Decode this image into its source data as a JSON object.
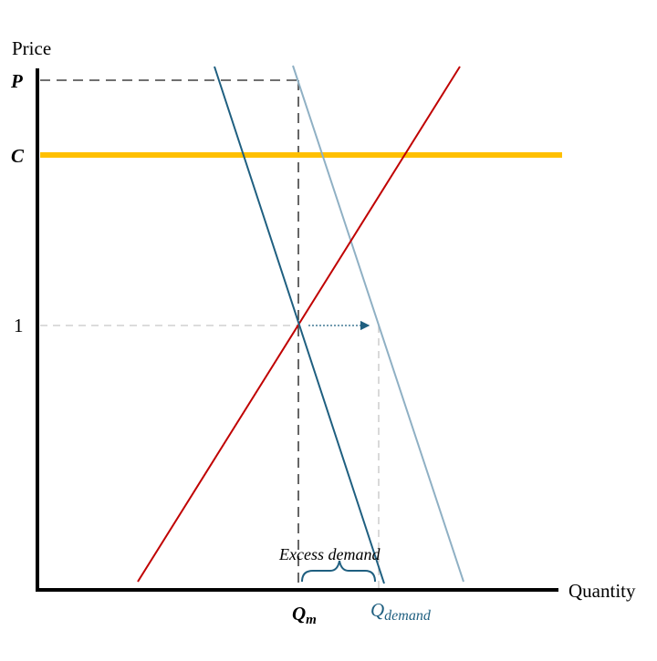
{
  "axes": {
    "y_title": "Price",
    "x_title": "Quantity"
  },
  "y_ticks": {
    "p": "P",
    "c": "C",
    "one": "1"
  },
  "x_ticks": {
    "qm_main": "Q",
    "qm_sub": "m",
    "qd_main": "Q",
    "qd_sub": "demand"
  },
  "annotation": {
    "excess": "Excess demand"
  },
  "colors": {
    "axis": "#000000",
    "supply": "#c00000",
    "demand": "#1f5f80",
    "demand_shifted": "#8fb0c4",
    "cap_line": "#ffc000",
    "guide_dark": "#404040",
    "guide_light": "#d0d0d0",
    "arrow": "#1f5f80"
  }
}
